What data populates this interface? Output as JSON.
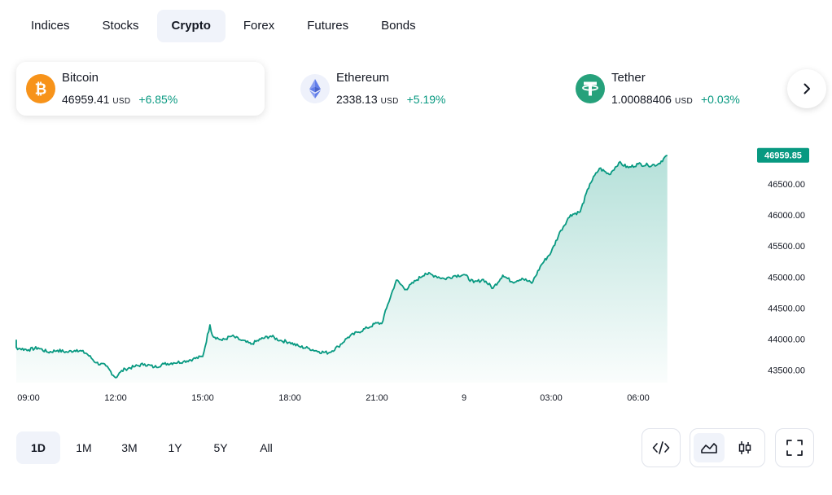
{
  "tabs": [
    {
      "label": "Indices"
    },
    {
      "label": "Stocks"
    },
    {
      "label": "Crypto"
    },
    {
      "label": "Forex"
    },
    {
      "label": "Futures"
    },
    {
      "label": "Bonds"
    }
  ],
  "active_tab": "Crypto",
  "tickers": [
    {
      "name": "Bitcoin",
      "price": "46959.41",
      "currency": "USD",
      "change": "+6.85%",
      "icon": "bitcoin-icon",
      "color": "#f7931a"
    },
    {
      "name": "Ethereum",
      "price": "2338.13",
      "currency": "USD",
      "change": "+5.19%",
      "icon": "ethereum-icon",
      "color": "#627eea"
    },
    {
      "name": "Tether",
      "price": "1.00088406",
      "currency": "USD",
      "change": "+0.03%",
      "icon": "tether-icon",
      "color": "#26a17b"
    }
  ],
  "ranges": [
    {
      "label": "1D"
    },
    {
      "label": "1M"
    },
    {
      "label": "3M"
    },
    {
      "label": "1Y"
    },
    {
      "label": "5Y"
    },
    {
      "label": "All"
    }
  ],
  "active_range": "1D",
  "colors": {
    "accent": "#089981",
    "positive": "#089981"
  },
  "chart_data": {
    "type": "area",
    "series": [
      {
        "name": "Bitcoin",
        "x": [
          "08:00",
          "08:20",
          "08:40",
          "09:00",
          "09:20",
          "09:40",
          "10:00",
          "10:20",
          "10:40",
          "11:00",
          "11:20",
          "11:40",
          "12:00",
          "12:10",
          "12:20",
          "12:40",
          "13:00",
          "13:20",
          "13:40",
          "14:00",
          "14:20",
          "14:40",
          "15:00",
          "15:15",
          "15:20",
          "15:40",
          "16:00",
          "16:20",
          "16:40",
          "17:00",
          "17:20",
          "17:40",
          "18:00",
          "18:20",
          "18:40",
          "19:00",
          "19:20",
          "19:40",
          "20:00",
          "20:20",
          "20:40",
          "21:00",
          "21:10",
          "21:20",
          "21:40",
          "22:00",
          "22:20",
          "22:40",
          "23:00",
          "23:20",
          "23:40",
          "00:00",
          "00:20",
          "00:40",
          "01:00",
          "01:20",
          "01:40",
          "02:00",
          "02:20",
          "02:40",
          "03:00",
          "03:20",
          "03:40",
          "04:00",
          "04:20",
          "04:40",
          "05:00",
          "05:20",
          "05:40",
          "06:00",
          "06:20",
          "06:40",
          "07:00"
        ],
        "values": [
          43990,
          43900,
          43850,
          43830,
          43860,
          43790,
          43820,
          43790,
          43830,
          43770,
          43620,
          43570,
          43380,
          43470,
          43520,
          43560,
          43600,
          43550,
          43600,
          43620,
          43640,
          43680,
          43720,
          44230,
          44060,
          43980,
          44050,
          43980,
          43920,
          44000,
          44050,
          43980,
          43950,
          43880,
          43850,
          43800,
          43780,
          43880,
          44030,
          44110,
          44180,
          44260,
          44250,
          44500,
          44950,
          44800,
          44940,
          45060,
          45020,
          44970,
          45020,
          45040,
          44910,
          44960,
          44820,
          45030,
          44920,
          44980,
          44900,
          45200,
          45400,
          45750,
          46000,
          46050,
          46500,
          46750,
          46650,
          46840,
          46760,
          46820,
          46800,
          46810,
          46960
        ]
      }
    ],
    "last_value": "46959.85",
    "y_ticks": [
      "43500.00",
      "44000.00",
      "44500.00",
      "45000.00",
      "45500.00",
      "46000.00",
      "46500.00"
    ],
    "x_ticks": [
      "09:00",
      "12:00",
      "15:00",
      "18:00",
      "21:00",
      "9",
      "03:00",
      "06:00"
    ],
    "ylim": [
      43300,
      47100
    ],
    "grid": false
  }
}
